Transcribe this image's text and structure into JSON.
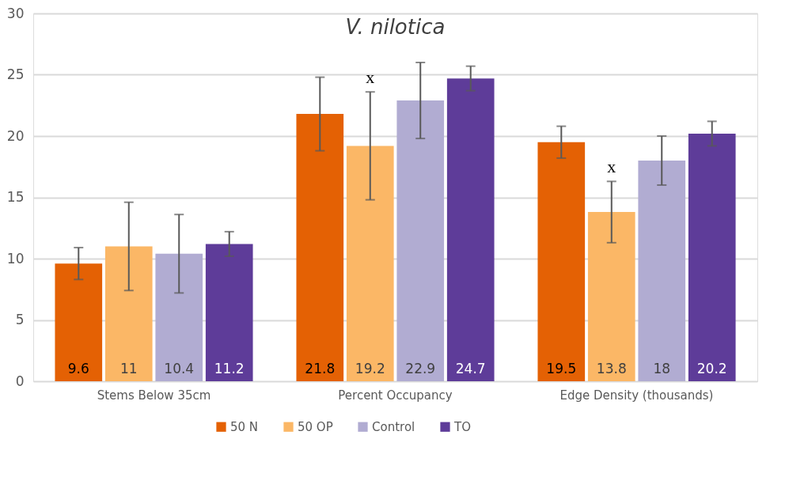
{
  "chart_data": {
    "type": "bar",
    "title": "V. nilotica",
    "categories": [
      "Stems Below 35cm",
      "Percent Occupancy",
      "Edge Density (thousands)"
    ],
    "series": [
      {
        "name": "50 N",
        "color": "#e46104",
        "values": [
          9.6,
          21.8,
          19.5
        ],
        "errors": [
          1.3,
          3.0,
          1.3
        ]
      },
      {
        "name": "50 OP",
        "color": "#fbb766",
        "values": [
          11,
          19.2,
          13.8
        ],
        "errors": [
          3.6,
          4.4,
          2.5
        ]
      },
      {
        "name": "Control",
        "color": "#b1acd2",
        "values": [
          10.4,
          22.9,
          18
        ],
        "errors": [
          3.2,
          3.1,
          2.0
        ]
      },
      {
        "name": "TO",
        "color": "#5e3c99",
        "values": [
          11.2,
          24.7,
          20.2
        ],
        "errors": [
          1.0,
          1.0,
          1.0
        ]
      }
    ],
    "ylim": [
      0,
      30
    ],
    "yticks": [
      0,
      5,
      10,
      15,
      20,
      25,
      30
    ],
    "grid": "y",
    "legend": "bottom",
    "data_labels": true,
    "annotations": [
      "x",
      "x"
    ]
  }
}
